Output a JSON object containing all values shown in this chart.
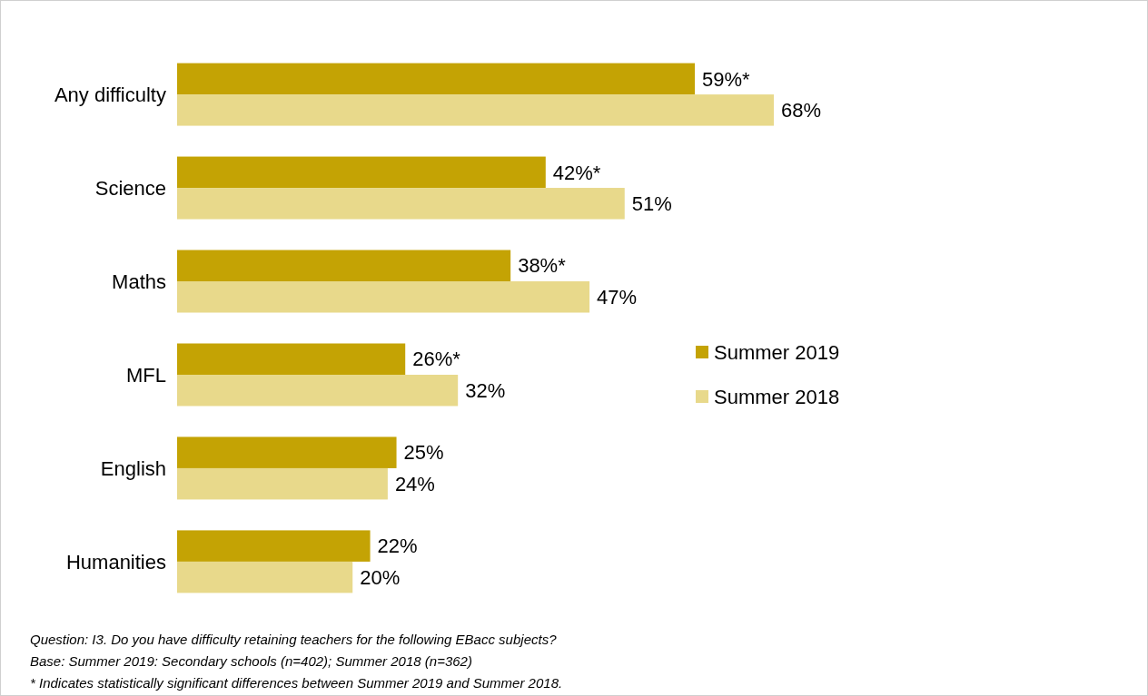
{
  "chart_data": {
    "type": "bar",
    "orientation": "horizontal",
    "categories": [
      "Any difficulty",
      "Science",
      "Maths",
      "MFL",
      "English",
      "Humanities"
    ],
    "series": [
      {
        "name": "Summer 2019",
        "color": "#c4a304",
        "values": [
          59,
          42,
          38,
          26,
          25,
          22
        ],
        "value_labels": [
          "59%*",
          "42%*",
          "38%*",
          "26%*",
          "25%",
          "22%"
        ]
      },
      {
        "name": "Summer 2018",
        "color": "#e8d98b",
        "values": [
          68,
          51,
          47,
          32,
          24,
          20
        ],
        "value_labels": [
          "68%",
          "51%",
          "47%",
          "32%",
          "24%",
          "20%"
        ]
      }
    ],
    "tick_labels": "y",
    "legend": "right",
    "annotations": [
      "Question: I3. Do you have difficulty retaining teachers for the following EBacc subjects?",
      "Base: Summer 2019: Secondary schools (n=402); Summer 2018 (n=362)",
      "* Indicates statistically significant differences between Summer 2019 and Summer 2018."
    ]
  }
}
